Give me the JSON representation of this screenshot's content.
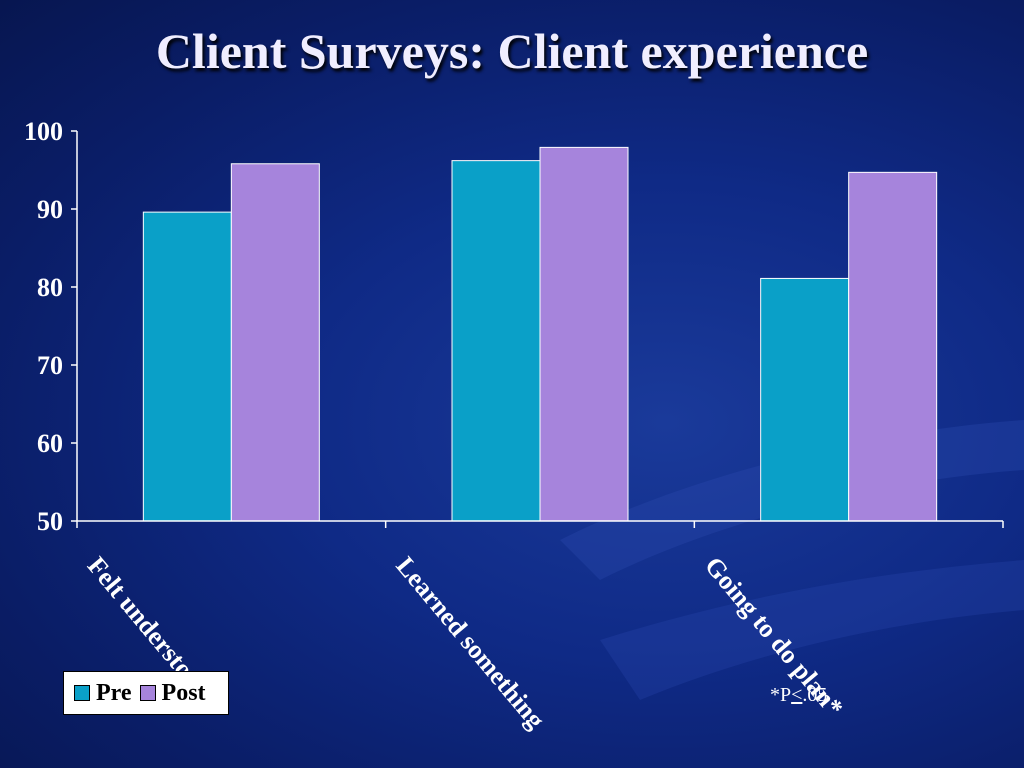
{
  "title": "Client Surveys: Client experience",
  "footnote": {
    "prefix": "*P",
    "symbol": "<",
    "suffix": ".05"
  },
  "colors": {
    "pre": "#0aa0c8",
    "post": "#a684dc",
    "axis": "#ffffff",
    "text": "#ffffff"
  },
  "chart_data": {
    "type": "bar",
    "categories": [
      "Felt understood*",
      "Learned something",
      "Going to do plan*"
    ],
    "series": [
      {
        "name": "Pre",
        "values": [
          89.6,
          96.2,
          81.1
        ]
      },
      {
        "name": "Post",
        "values": [
          95.8,
          97.9,
          94.7
        ]
      }
    ],
    "yticks": [
      "50",
      "60",
      "70",
      "80",
      "90",
      "100"
    ],
    "ylim": [
      50,
      100
    ],
    "xlabel": "",
    "ylabel": "",
    "grid": false,
    "legend_position": "bottom-left"
  }
}
